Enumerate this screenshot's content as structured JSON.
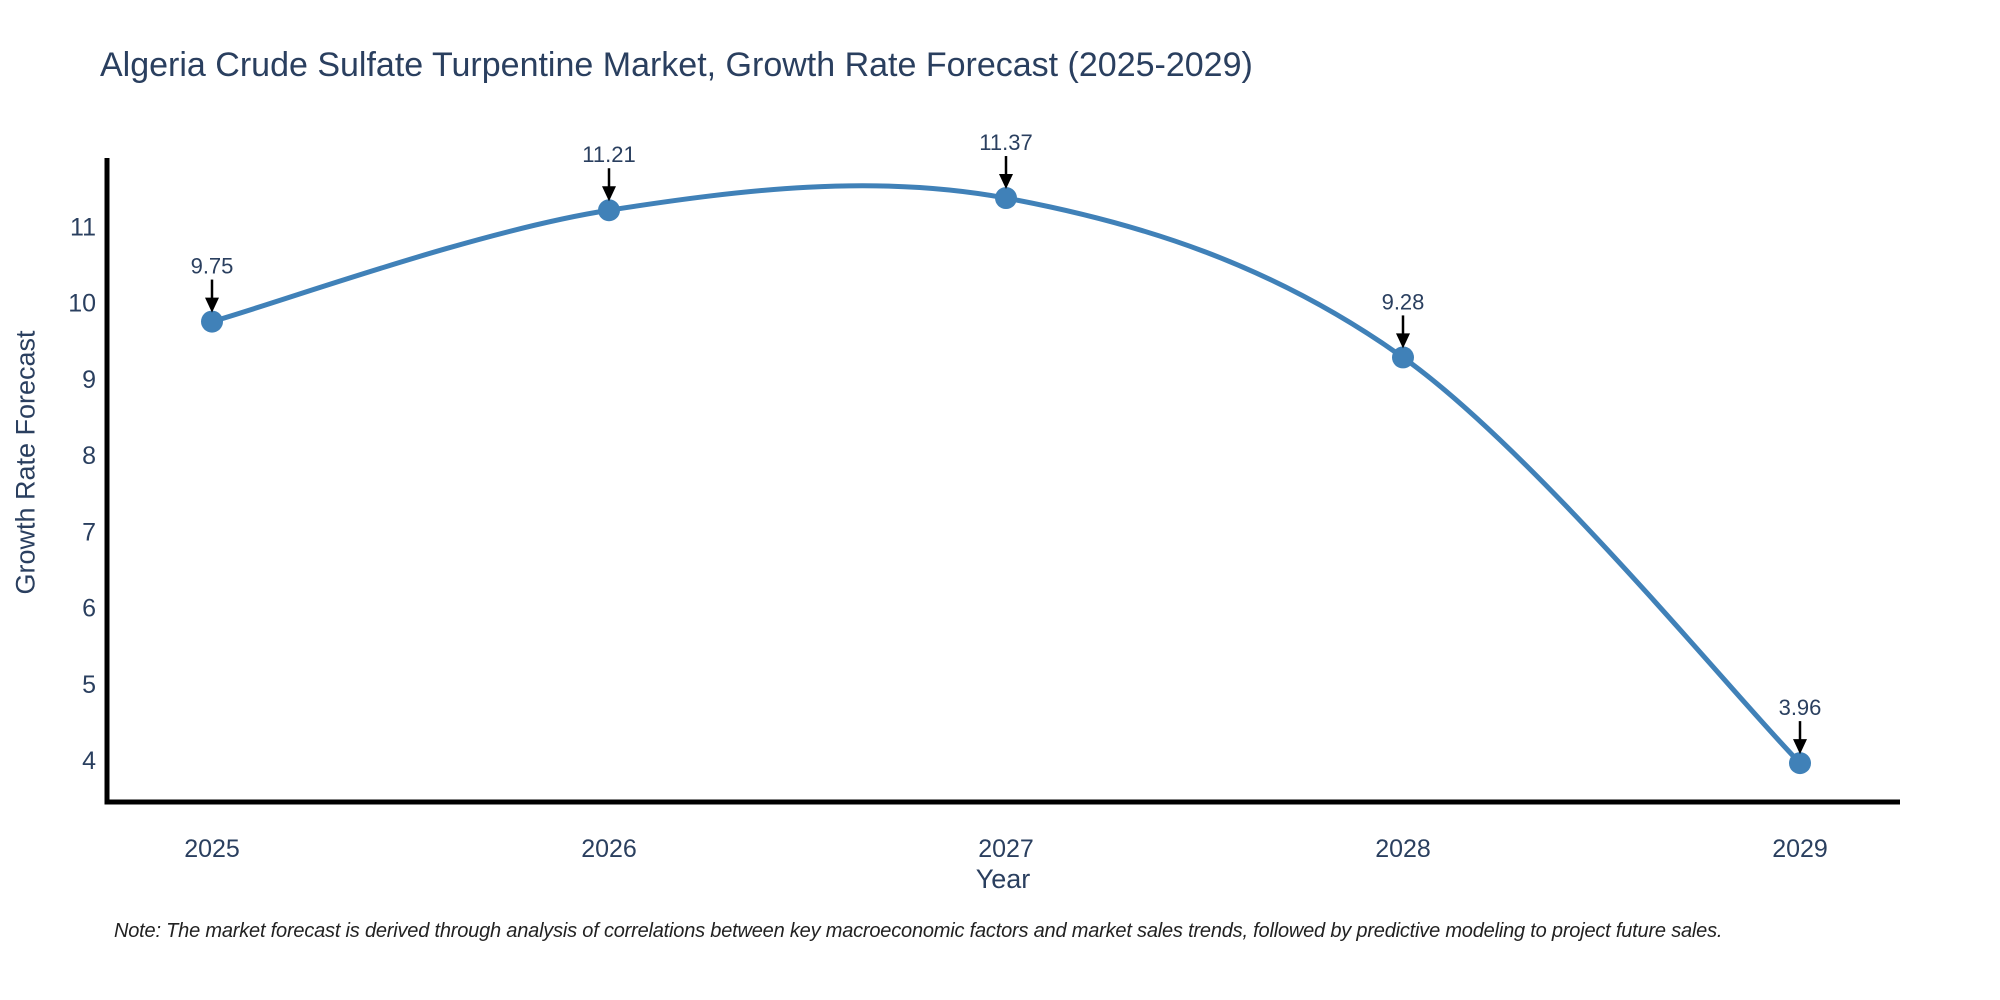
{
  "chart_data": {
    "type": "line",
    "title": "Algeria Crude Sulfate Turpentine Market, Growth Rate Forecast (2025-2029)",
    "xlabel": "Year",
    "ylabel": "Growth Rate Forecast",
    "x": [
      2025,
      2026,
      2027,
      2028,
      2029
    ],
    "series": [
      {
        "name": "Growth Rate Forecast",
        "values": [
          9.75,
          11.21,
          11.37,
          9.28,
          3.96
        ]
      }
    ],
    "annotations": [
      "9.75",
      "11.21",
      "11.37",
      "9.28",
      "3.96"
    ],
    "yticks": [
      4,
      5,
      6,
      7,
      8,
      9,
      10,
      11
    ],
    "ylim": [
      3.45,
      11.895
    ],
    "line_shape": "spline",
    "grid": false,
    "legend": "none",
    "colors": {
      "line": "#4081b8",
      "marker": "#4081b8",
      "axis": "#000000",
      "text": "#2a3f5f",
      "arrow": "#000000",
      "note_text": "#222222",
      "background": "#ffffff"
    },
    "note": "Note: The market forecast is derived through analysis of correlations between key macroeconomic factors and market sales trends, followed by predictive modeling to project future sales."
  }
}
